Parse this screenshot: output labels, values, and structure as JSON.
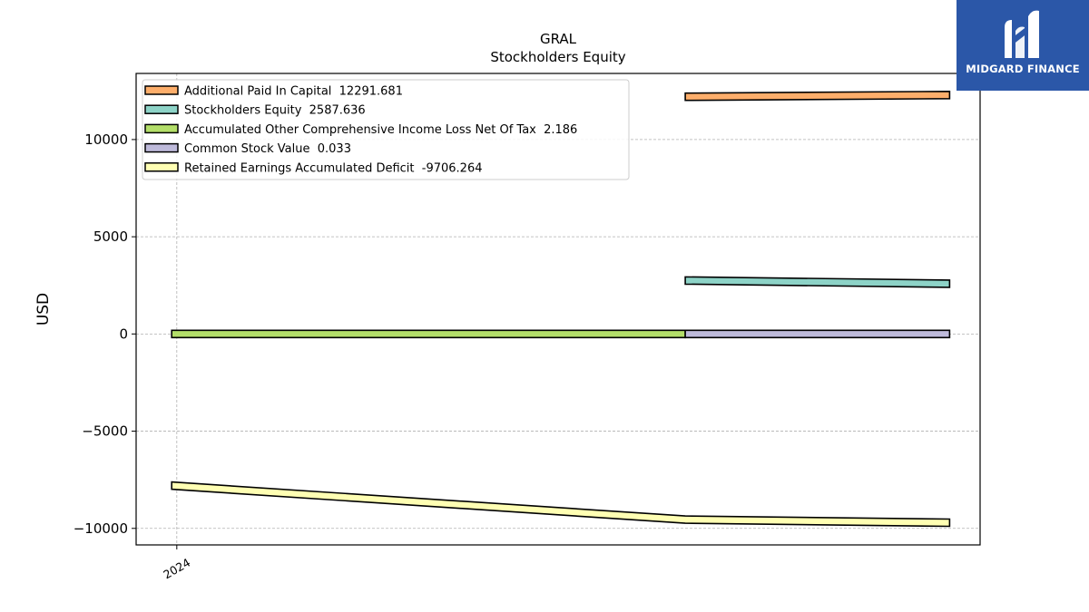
{
  "brand": {
    "name": "MIDGARD FINANCE",
    "color": "#2b57a8",
    "icon": "midgard-logo-icon"
  },
  "chart_data": {
    "type": "area",
    "title": "GRAL",
    "subtitle": "Stockholders  Equity",
    "ylabel": "USD",
    "xlabel": "",
    "ylim": [
      -10850,
      13400
    ],
    "xlim": [
      -0.08,
      1.58
    ],
    "yticks": [
      10000,
      5000,
      0,
      -5000,
      -10000
    ],
    "ytick_labels": [
      "10000",
      "5000",
      "0",
      "−5000",
      "−10000"
    ],
    "xticks": [
      {
        "x": 0,
        "label": "2024"
      }
    ],
    "grid": true,
    "legend_position": "top-left",
    "series": [
      {
        "name": "Additional Paid In Capital  12291.681",
        "color": "#fdae6b",
        "points": [
          [
            1.0,
            12200
          ],
          [
            1.52,
            12291.681
          ]
        ]
      },
      {
        "name": "Stockholders Equity  2587.636",
        "color": "#8dd3c7",
        "points": [
          [
            1.0,
            2750
          ],
          [
            1.52,
            2587.636
          ]
        ]
      },
      {
        "name": "Accumulated Other Comprehensive Income Loss Net Of Tax  2.186",
        "color": "#b3de69",
        "points": [
          [
            -0.01,
            2.186
          ],
          [
            1.0,
            2.186
          ]
        ]
      },
      {
        "name": "Common Stock Value  0.033",
        "color": "#bebada",
        "points": [
          [
            1.0,
            0.033
          ],
          [
            1.52,
            0.033
          ]
        ]
      },
      {
        "name": "Retained Earnings Accumulated Deficit  -9706.264",
        "color": "#ffffb3",
        "points": [
          [
            -0.01,
            -7800
          ],
          [
            1.0,
            -9550
          ],
          [
            1.52,
            -9706.264
          ]
        ]
      }
    ]
  }
}
